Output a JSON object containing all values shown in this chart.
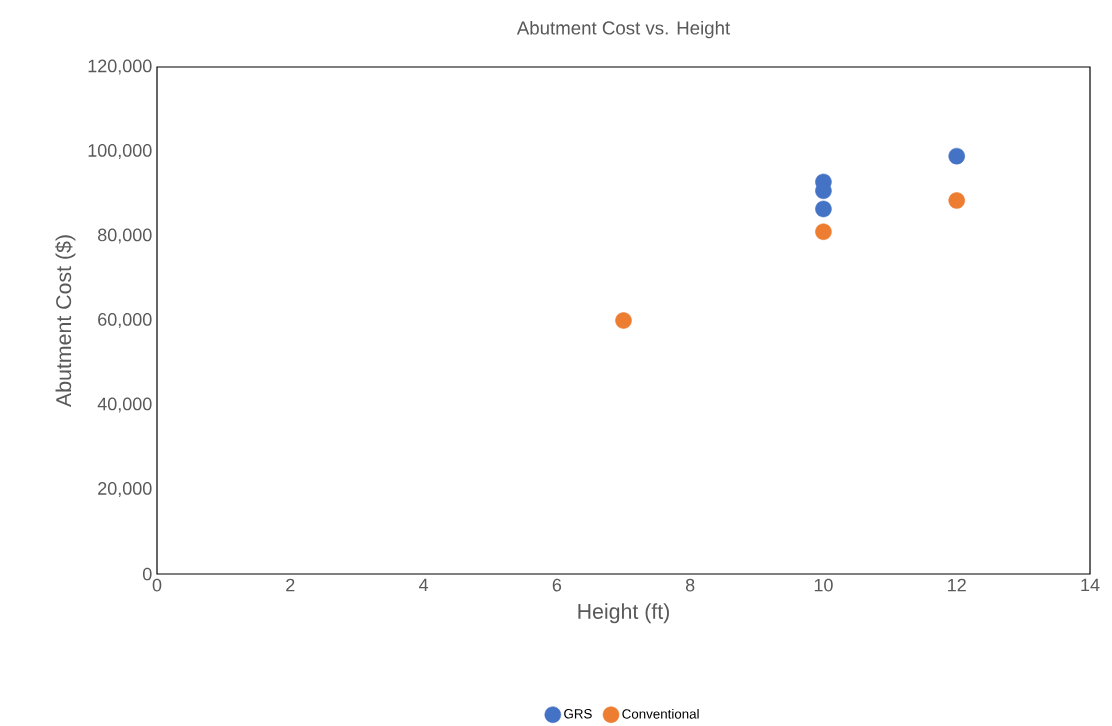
{
  "chart_data": {
    "type": "scatter",
    "title": "Abutment Cost vs. Height",
    "xlabel": "Height (ft)",
    "ylabel": "Abutment Cost ($)",
    "series": [
      {
        "name": "GRS",
        "color": "#4472c4",
        "x": [
          10,
          10,
          10,
          12
        ],
        "values": [
          92800,
          90700,
          86400,
          98900
        ]
      },
      {
        "name": "Conventional",
        "color": "#ed7d31",
        "x": [
          7,
          10,
          12
        ],
        "values": [
          60000,
          81000,
          88400
        ]
      }
    ],
    "xlim": [
      0,
      14
    ],
    "xticks": [
      0,
      2,
      4,
      6,
      8,
      10,
      12,
      14
    ],
    "ylim": [
      0,
      120000
    ],
    "yticks": [
      0,
      {
        "value": 20000,
        "label": "20,000"
      },
      {
        "value": 40000,
        "label": "40,000"
      },
      {
        "value": 60000,
        "label": "60,000"
      },
      {
        "value": 80000,
        "label": "80,000"
      },
      {
        "value": 100000,
        "label": "100,000"
      },
      {
        "value": 120000,
        "label": "120,000"
      }
    ],
    "marker": "circle",
    "grid": false,
    "legend": "bottom"
  }
}
